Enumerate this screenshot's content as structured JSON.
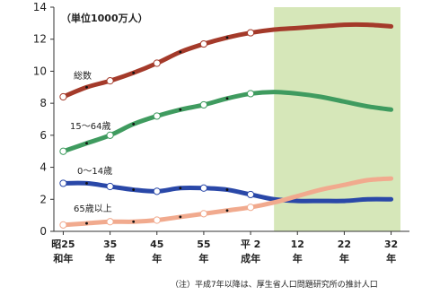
{
  "chart_data": {
    "type": "line",
    "unit_label": "（単位1000万人）",
    "ylim": [
      0,
      14
    ],
    "y_ticks": [
      0,
      2,
      4,
      6,
      8,
      10,
      12,
      14
    ],
    "x_ticks": [
      {
        "value": 1950,
        "top": "昭25",
        "bottom": "和年"
      },
      {
        "value": 1960,
        "top": "35",
        "bottom": "年"
      },
      {
        "value": 1970,
        "top": "45",
        "bottom": "年"
      },
      {
        "value": 1980,
        "top": "55",
        "bottom": "年"
      },
      {
        "value": 1990,
        "top": "平 2",
        "bottom": "成年"
      },
      {
        "value": 2000,
        "top": "12",
        "bottom": "年"
      },
      {
        "value": 2010,
        "top": "22",
        "bottom": "年"
      },
      {
        "value": 2020,
        "top": "32",
        "bottom": "年"
      }
    ],
    "xlim": [
      1948,
      2022
    ],
    "projection_start": 1995,
    "series": [
      {
        "name": "総数",
        "color": "#a43a2a",
        "x": [
          1950,
          1955,
          1960,
          1965,
          1970,
          1975,
          1980,
          1985,
          1990,
          1995,
          2000,
          2005,
          2010,
          2015,
          2020
        ],
        "y": [
          8.4,
          9.0,
          9.4,
          9.9,
          10.5,
          11.2,
          11.7,
          12.1,
          12.4,
          12.6,
          12.7,
          12.8,
          12.9,
          12.9,
          12.8
        ]
      },
      {
        "name": "15〜64歳",
        "color": "#3f9b5f",
        "x": [
          1950,
          1955,
          1960,
          1965,
          1970,
          1975,
          1980,
          1985,
          1990,
          1995,
          2000,
          2005,
          2010,
          2015,
          2020
        ],
        "y": [
          5.0,
          5.5,
          6.0,
          6.7,
          7.2,
          7.6,
          7.9,
          8.3,
          8.6,
          8.7,
          8.6,
          8.4,
          8.1,
          7.8,
          7.6
        ]
      },
      {
        "name": "0〜14歳",
        "color": "#2a48a8",
        "x": [
          1950,
          1955,
          1960,
          1965,
          1970,
          1975,
          1980,
          1985,
          1990,
          1995,
          2000,
          2005,
          2010,
          2015,
          2020
        ],
        "y": [
          3.0,
          3.0,
          2.8,
          2.6,
          2.5,
          2.7,
          2.7,
          2.6,
          2.3,
          2.0,
          1.9,
          1.9,
          1.9,
          2.0,
          2.0
        ]
      },
      {
        "name": "65歳以上",
        "color": "#f1aa8e",
        "x": [
          1950,
          1955,
          1960,
          1965,
          1970,
          1975,
          1980,
          1985,
          1990,
          1995,
          2000,
          2005,
          2010,
          2015,
          2020
        ],
        "y": [
          0.4,
          0.5,
          0.6,
          0.6,
          0.7,
          0.9,
          1.1,
          1.3,
          1.5,
          1.8,
          2.2,
          2.6,
          2.9,
          3.2,
          3.3
        ]
      }
    ],
    "note": "（注）平成7年以降は、厚生省人口問題研究所の推計人口"
  }
}
